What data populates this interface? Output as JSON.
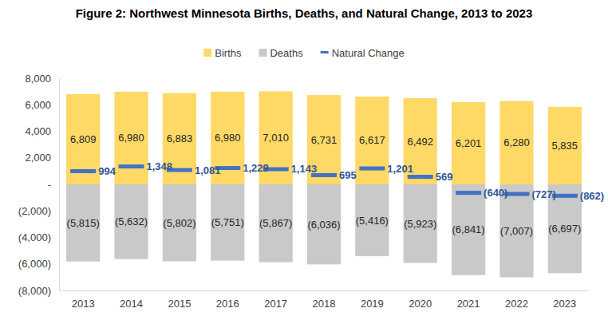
{
  "chart_data": {
    "type": "bar",
    "title": "Figure 2: Northwest Minnesota Births, Deaths, and Natural Change, 2013 to 2023",
    "categories": [
      "2013",
      "2014",
      "2015",
      "2016",
      "2017",
      "2018",
      "2019",
      "2020",
      "2021",
      "2022",
      "2023"
    ],
    "series": [
      {
        "name": "Births",
        "type": "bar",
        "color": "#FFD966",
        "values": [
          6809,
          6980,
          6883,
          6980,
          7010,
          6731,
          6617,
          6492,
          6201,
          6280,
          5835
        ],
        "value_labels": [
          "6,809",
          "6,980",
          "6,883",
          "6,980",
          "7,010",
          "6,731",
          "6,617",
          "6,492",
          "6,201",
          "6,280",
          "5,835"
        ]
      },
      {
        "name": "Deaths",
        "type": "bar",
        "color": "#C9C9C9",
        "values": [
          -5815,
          -5632,
          -5802,
          -5751,
          -5867,
          -6036,
          -5416,
          -5923,
          -6841,
          -7007,
          -6697
        ],
        "value_labels": [
          "(5,815)",
          "(5,632)",
          "(5,802)",
          "(5,751)",
          "(5,867)",
          "(6,036)",
          "(5,416)",
          "(5,923)",
          "(6,841)",
          "(7,007)",
          "(6,697)"
        ]
      },
      {
        "name": "Natural Change",
        "type": "scatter",
        "marker": "dash",
        "color": "#4472C4",
        "values": [
          994,
          1348,
          1081,
          1229,
          1143,
          695,
          1201,
          569,
          -640,
          -727,
          -862
        ],
        "value_labels": [
          "994",
          "1,348",
          "1,081",
          "1,229",
          "1,143",
          "695",
          "1,201",
          "569",
          "(640)",
          "(727)",
          "(862)"
        ]
      }
    ],
    "ylim": [
      -8000,
      8000
    ],
    "yticks": [
      {
        "value": -8000,
        "label": "(8,000)"
      },
      {
        "value": -6000,
        "label": "(6,000)"
      },
      {
        "value": -4000,
        "label": "(4,000)"
      },
      {
        "value": -2000,
        "label": "(2,000)"
      },
      {
        "value": 0,
        "label": "-"
      },
      {
        "value": 2000,
        "label": "2,000"
      },
      {
        "value": 4000,
        "label": "4,000"
      },
      {
        "value": 6000,
        "label": "6,000"
      },
      {
        "value": 8000,
        "label": "8,000"
      }
    ],
    "stacked": true,
    "data_labels": true,
    "grid": false,
    "legend": "top"
  }
}
